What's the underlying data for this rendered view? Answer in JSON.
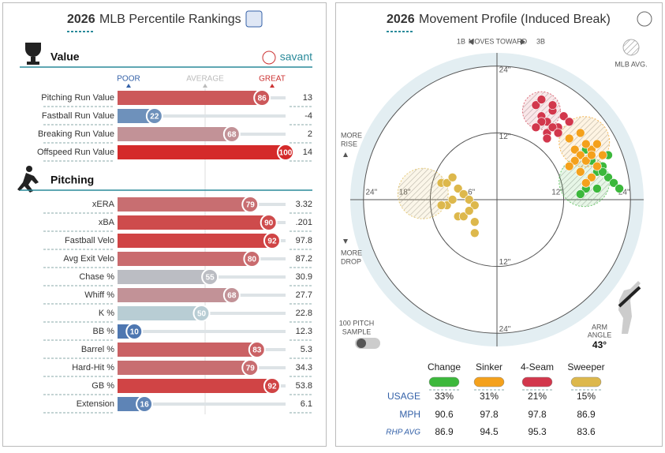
{
  "left": {
    "year": "2026",
    "title": "MLB Percentile Rankings",
    "scale": [
      "POOR",
      "AVERAGE",
      "GREAT"
    ],
    "sections": [
      {
        "name": "Value",
        "brand": "savant",
        "rows": [
          {
            "label": "Pitching Run Value",
            "percentile": 86,
            "value": "13"
          },
          {
            "label": "Fastball Run Value",
            "percentile": 22,
            "value": "-4"
          },
          {
            "label": "Breaking Run Value",
            "percentile": 68,
            "value": "2"
          },
          {
            "label": "Offspeed Run Value",
            "percentile": 100,
            "value": "14"
          }
        ]
      },
      {
        "name": "Pitching",
        "rows": [
          {
            "label": "xERA",
            "percentile": 79,
            "value": "3.32"
          },
          {
            "label": "xBA",
            "percentile": 90,
            "value": ".201"
          },
          {
            "label": "Fastball Velo",
            "percentile": 92,
            "value": "97.8"
          },
          {
            "label": "Avg Exit Velo",
            "percentile": 80,
            "value": "87.2"
          },
          {
            "label": "Chase %",
            "percentile": 55,
            "value": "30.9"
          },
          {
            "label": "Whiff %",
            "percentile": 68,
            "value": "27.7"
          },
          {
            "label": "K %",
            "percentile": 50,
            "value": "22.8"
          },
          {
            "label": "BB %",
            "percentile": 10,
            "value": "12.3"
          },
          {
            "label": "Barrel %",
            "percentile": 83,
            "value": "5.3"
          },
          {
            "label": "Hard-Hit %",
            "percentile": 79,
            "value": "34.3"
          },
          {
            "label": "GB %",
            "percentile": 92,
            "value": "53.8"
          },
          {
            "label": "Extension",
            "percentile": 16,
            "value": "6.1"
          }
        ]
      }
    ]
  },
  "right": {
    "year": "2026",
    "title": "Movement Profile (Induced Break)",
    "direction": [
      "1B",
      "MOVES TOWARD",
      "3B"
    ],
    "mlb_avg": "MLB AVG.",
    "rise": [
      "MORE",
      "RISE"
    ],
    "drop": [
      "MORE",
      "DROP"
    ],
    "sample": [
      "100 PITCH",
      "SAMPLE"
    ],
    "arm_angle": {
      "label": [
        "ARM",
        "ANGLE"
      ],
      "value": "43°"
    },
    "hticks": [
      {
        "value": -24,
        "label": "24\""
      },
      {
        "value": -18,
        "label": "18\""
      },
      {
        "value": -6,
        "label": "6\""
      },
      {
        "value": 12,
        "label": "12\""
      },
      {
        "value": 24,
        "label": "24\""
      }
    ],
    "vticks": [
      {
        "value": 24,
        "label": "24\""
      },
      {
        "value": 12,
        "label": "12\""
      },
      {
        "value": -12,
        "label": "12\""
      },
      {
        "value": -24,
        "label": "24\""
      }
    ],
    "pitches": [
      {
        "name": "Change",
        "color": "#3cb83c",
        "avg": [
          15.7,
          3.3
        ],
        "x": [
          16,
          17,
          18,
          19,
          20,
          21,
          18,
          17,
          20,
          16,
          19,
          15,
          22
        ],
        "y": [
          9,
          7,
          5,
          6,
          4,
          3,
          2,
          4,
          8,
          2,
          5,
          1,
          2
        ]
      },
      {
        "name": "Sinker",
        "color": "#f4a11c",
        "avg": [
          15.7,
          10.4
        ],
        "x": [
          13,
          14,
          15,
          16,
          17,
          15,
          16,
          18,
          14,
          17,
          19,
          15,
          16,
          13,
          18,
          17
        ],
        "y": [
          11,
          9,
          8,
          7,
          9,
          5,
          10,
          6,
          7,
          4,
          8,
          12,
          3,
          6,
          10,
          8
        ]
      },
      {
        "name": "4-Seam",
        "color": "#d2374c",
        "avg": [
          8,
          16
        ],
        "x": [
          7,
          8,
          9,
          10,
          11,
          9,
          8,
          10,
          12,
          7,
          11,
          9,
          13,
          10,
          8
        ],
        "y": [
          17,
          15,
          14,
          16,
          13,
          12,
          14,
          13,
          15,
          13,
          12,
          11,
          14,
          17,
          18
        ]
      },
      {
        "name": "Sweeper",
        "color": "#ddb84c",
        "avg": [
          -13.3,
          1.1
        ],
        "x": [
          -10,
          -9,
          -8,
          -7,
          -6,
          -5,
          -4,
          -9,
          -7,
          -6,
          -5,
          -4,
          -8,
          -10,
          -4
        ],
        "y": [
          3,
          3,
          4,
          2,
          1,
          0,
          -1,
          -1,
          -3,
          -3,
          -2,
          -4,
          0,
          -1,
          -6
        ]
      }
    ],
    "table": {
      "row_labels": [
        "USAGE",
        "MPH",
        "RHP AVG"
      ],
      "rows": [
        [
          "33%",
          "31%",
          "21%",
          "15%"
        ],
        [
          "90.6",
          "97.8",
          "97.8",
          "86.9"
        ],
        [
          "86.9",
          "94.5",
          "95.3",
          "83.6"
        ]
      ]
    }
  }
}
